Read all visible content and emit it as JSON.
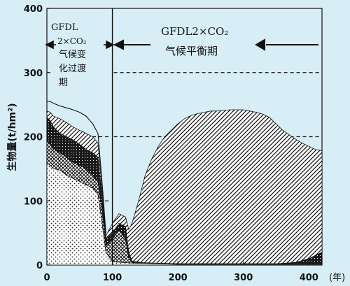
{
  "chart_data": {
    "type": "area",
    "x_unit": "年",
    "xlim": [
      0,
      420
    ],
    "ylim": [
      0,
      400
    ],
    "xticks": [
      0,
      100,
      200,
      300,
      400
    ],
    "yticks": [
      0,
      100,
      200,
      300,
      400
    ],
    "ylabel": "生物量(t/hm²)",
    "xlabel": "(年)",
    "phase_boundary_x": 100,
    "annotations": {
      "transition": [
        "GFDL",
        "2×CO₂",
        "气候变",
        "化过渡",
        "期"
      ],
      "equilibrium": [
        "GFDL2×CO₂",
        "气候平衡期"
      ]
    },
    "reference_lines": [
      {
        "y": 100,
        "x_range": [
          0,
          100
        ]
      },
      {
        "y": 200,
        "x_range": [
          0,
          100
        ]
      },
      {
        "y": 200,
        "x_range": [
          100,
          420
        ]
      },
      {
        "y": 300,
        "x_range": [
          100,
          420
        ]
      }
    ],
    "series": [
      {
        "pattern": "dots",
        "x": [
          0,
          5,
          10,
          20,
          30,
          40,
          50,
          60,
          70,
          78,
          85,
          90,
          100,
          130,
          200,
          300,
          420
        ],
        "y": [
          160,
          155,
          150,
          148,
          140,
          135,
          130,
          125,
          120,
          110,
          60,
          20,
          5,
          3,
          1,
          1,
          1
        ]
      },
      {
        "pattern": "crosshatch",
        "x": [
          0,
          5,
          10,
          20,
          30,
          40,
          50,
          60,
          70,
          78,
          85,
          90,
          95,
          100,
          110,
          120,
          125,
          130,
          200,
          300,
          420
        ],
        "y": [
          195,
          188,
          180,
          175,
          168,
          160,
          155,
          150,
          140,
          130,
          80,
          30,
          35,
          40,
          55,
          40,
          10,
          4,
          2,
          2,
          2
        ]
      },
      {
        "pattern": "dense-black",
        "x": [
          0,
          5,
          10,
          20,
          30,
          40,
          50,
          60,
          70,
          78,
          85,
          90,
          95,
          100,
          110,
          120,
          125,
          130,
          150,
          200,
          250,
          300,
          350,
          380,
          400,
          420
        ],
        "y": [
          230,
          225,
          215,
          205,
          200,
          195,
          188,
          180,
          175,
          168,
          100,
          40,
          45,
          50,
          65,
          60,
          20,
          6,
          3,
          2,
          2,
          2,
          2,
          4,
          10,
          20
        ]
      },
      {
        "pattern": "diagonal",
        "x": [
          0,
          5,
          10,
          20,
          30,
          40,
          50,
          60,
          70,
          78,
          85,
          90,
          95,
          100,
          110,
          120,
          125,
          130,
          140,
          150,
          160,
          170,
          180,
          190,
          200,
          210,
          220,
          230,
          240,
          250,
          260,
          270,
          280,
          290,
          300,
          310,
          320,
          330,
          340,
          350,
          360,
          370,
          380,
          390,
          400,
          410,
          420
        ],
        "y": [
          240,
          238,
          232,
          228,
          222,
          215,
          210,
          205,
          200,
          190,
          110,
          45,
          55,
          65,
          80,
          75,
          55,
          65,
          100,
          140,
          165,
          185,
          200,
          210,
          220,
          228,
          233,
          236,
          238,
          240,
          240,
          241,
          242,
          242,
          242,
          240,
          238,
          235,
          230,
          220,
          210,
          203,
          196,
          190,
          185,
          180,
          178
        ]
      },
      {
        "pattern": "outline",
        "x": [
          0,
          5,
          10,
          20,
          30,
          40,
          50,
          60,
          70,
          78,
          85,
          90
        ],
        "y": [
          255,
          255,
          252,
          248,
          245,
          242,
          238,
          232,
          220,
          205,
          120,
          50
        ]
      }
    ]
  }
}
